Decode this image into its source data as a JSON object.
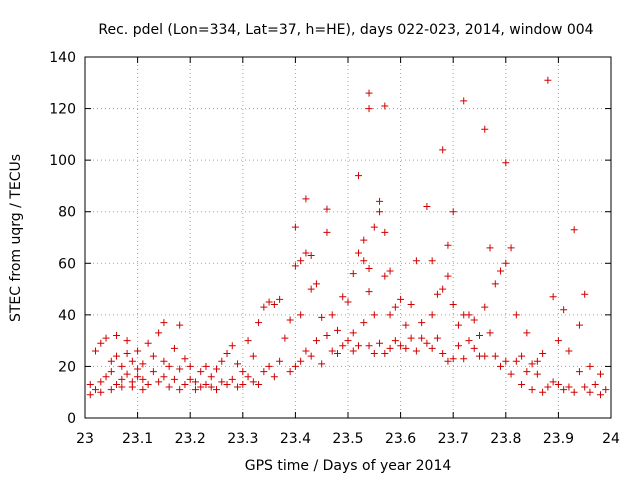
{
  "chart_data": {
    "type": "scatter",
    "title": "Rec. pdel (Lon=334, Lat=37, h=HE), days 022-023, 2014, window 004",
    "xlabel": "GPS time / Days of year 2014",
    "ylabel": "STEC from uqrg / TECUs",
    "xlim": [
      23,
      24
    ],
    "ylim": [
      0,
      140
    ],
    "x_ticks": [
      "23",
      "23.1",
      "23.2",
      "23.3",
      "23.4",
      "23.5",
      "23.6",
      "23.7",
      "23.8",
      "23.9",
      "24"
    ],
    "y_ticks": [
      "0",
      "20",
      "40",
      "60",
      "80",
      "100",
      "120",
      "140"
    ],
    "grid": true,
    "marker": "+",
    "color": "#d00000",
    "series": [
      {
        "points": [
          [
            23.01,
            9
          ],
          [
            23.01,
            13
          ],
          [
            23.02,
            11
          ],
          [
            23.02,
            26
          ],
          [
            23.03,
            10
          ],
          [
            23.03,
            14
          ],
          [
            23.03,
            29
          ],
          [
            23.04,
            16
          ],
          [
            23.04,
            31
          ],
          [
            23.05,
            11
          ],
          [
            23.05,
            18
          ],
          [
            23.05,
            22
          ],
          [
            23.06,
            13
          ],
          [
            23.06,
            24
          ],
          [
            23.06,
            32
          ],
          [
            23.07,
            12
          ],
          [
            23.07,
            15
          ],
          [
            23.07,
            20
          ],
          [
            23.08,
            17
          ],
          [
            23.08,
            25
          ],
          [
            23.08,
            30
          ],
          [
            23.09,
            12
          ],
          [
            23.09,
            14
          ],
          [
            23.09,
            22
          ],
          [
            23.1,
            16
          ],
          [
            23.1,
            19
          ],
          [
            23.1,
            26
          ],
          [
            23.11,
            11
          ],
          [
            23.11,
            15
          ],
          [
            23.11,
            21
          ],
          [
            23.12,
            13
          ],
          [
            23.12,
            29
          ],
          [
            23.13,
            18
          ],
          [
            23.13,
            24
          ],
          [
            23.14,
            14
          ],
          [
            23.14,
            33
          ],
          [
            23.15,
            16
          ],
          [
            23.15,
            22
          ],
          [
            23.15,
            37
          ],
          [
            23.16,
            12
          ],
          [
            23.16,
            20
          ],
          [
            23.17,
            15
          ],
          [
            23.17,
            27
          ],
          [
            23.18,
            11
          ],
          [
            23.18,
            19
          ],
          [
            23.18,
            36
          ],
          [
            23.19,
            13
          ],
          [
            23.19,
            23
          ],
          [
            23.2,
            15
          ],
          [
            23.2,
            20
          ],
          [
            23.21,
            11
          ],
          [
            23.21,
            14
          ],
          [
            23.22,
            12
          ],
          [
            23.22,
            18
          ],
          [
            23.23,
            13
          ],
          [
            23.23,
            20
          ],
          [
            23.24,
            12
          ],
          [
            23.24,
            16
          ],
          [
            23.25,
            11
          ],
          [
            23.25,
            19
          ],
          [
            23.26,
            14
          ],
          [
            23.26,
            22
          ],
          [
            23.27,
            13
          ],
          [
            23.27,
            25
          ],
          [
            23.28,
            15
          ],
          [
            23.28,
            28
          ],
          [
            23.29,
            12
          ],
          [
            23.29,
            21
          ],
          [
            23.3,
            13
          ],
          [
            23.3,
            18
          ],
          [
            23.31,
            16
          ],
          [
            23.31,
            30
          ],
          [
            23.32,
            14
          ],
          [
            23.32,
            24
          ],
          [
            23.33,
            13
          ],
          [
            23.33,
            37
          ],
          [
            23.34,
            18
          ],
          [
            23.34,
            43
          ],
          [
            23.35,
            20
          ],
          [
            23.35,
            45
          ],
          [
            23.36,
            16
          ],
          [
            23.36,
            44
          ],
          [
            23.37,
            22
          ],
          [
            23.37,
            46
          ],
          [
            23.38,
            31
          ],
          [
            23.39,
            18
          ],
          [
            23.39,
            38
          ],
          [
            23.4,
            20
          ],
          [
            23.4,
            59
          ],
          [
            23.4,
            74
          ],
          [
            23.41,
            22
          ],
          [
            23.41,
            40
          ],
          [
            23.41,
            61
          ],
          [
            23.42,
            26
          ],
          [
            23.42,
            64
          ],
          [
            23.42,
            85
          ],
          [
            23.43,
            24
          ],
          [
            23.43,
            50
          ],
          [
            23.43,
            63
          ],
          [
            23.44,
            30
          ],
          [
            23.44,
            52
          ],
          [
            23.45,
            21
          ],
          [
            23.45,
            39
          ],
          [
            23.46,
            32
          ],
          [
            23.46,
            72
          ],
          [
            23.46,
            81
          ],
          [
            23.47,
            26
          ],
          [
            23.47,
            40
          ],
          [
            23.48,
            25
          ],
          [
            23.48,
            34
          ],
          [
            23.49,
            47
          ],
          [
            23.49,
            28
          ],
          [
            23.5,
            30
          ],
          [
            23.5,
            45
          ],
          [
            23.51,
            26
          ],
          [
            23.51,
            33
          ],
          [
            23.51,
            56
          ],
          [
            23.52,
            94
          ],
          [
            23.52,
            28
          ],
          [
            23.52,
            64
          ],
          [
            23.53,
            37
          ],
          [
            23.53,
            61
          ],
          [
            23.53,
            69
          ],
          [
            23.54,
            28
          ],
          [
            23.54,
            49
          ],
          [
            23.54,
            58
          ],
          [
            23.54,
            120
          ],
          [
            23.54,
            126
          ],
          [
            23.55,
            25
          ],
          [
            23.55,
            40
          ],
          [
            23.55,
            74
          ],
          [
            23.56,
            29
          ],
          [
            23.56,
            80
          ],
          [
            23.56,
            84
          ],
          [
            23.57,
            25
          ],
          [
            23.57,
            55
          ],
          [
            23.57,
            72
          ],
          [
            23.57,
            121
          ],
          [
            23.58,
            27
          ],
          [
            23.58,
            40
          ],
          [
            23.58,
            57
          ],
          [
            23.59,
            30
          ],
          [
            23.59,
            43
          ],
          [
            23.6,
            28
          ],
          [
            23.6,
            46
          ],
          [
            23.61,
            27
          ],
          [
            23.61,
            36
          ],
          [
            23.62,
            31
          ],
          [
            23.62,
            44
          ],
          [
            23.63,
            26
          ],
          [
            23.63,
            61
          ],
          [
            23.64,
            31
          ],
          [
            23.64,
            37
          ],
          [
            23.65,
            29
          ],
          [
            23.65,
            82
          ],
          [
            23.66,
            27
          ],
          [
            23.66,
            61
          ],
          [
            23.66,
            40
          ],
          [
            23.67,
            31
          ],
          [
            23.67,
            48
          ],
          [
            23.68,
            25
          ],
          [
            23.68,
            104
          ],
          [
            23.68,
            50
          ],
          [
            23.69,
            22
          ],
          [
            23.69,
            55
          ],
          [
            23.69,
            67
          ],
          [
            23.7,
            23
          ],
          [
            23.7,
            44
          ],
          [
            23.7,
            80
          ],
          [
            23.71,
            28
          ],
          [
            23.71,
            36
          ],
          [
            23.72,
            23
          ],
          [
            23.72,
            123
          ],
          [
            23.72,
            40
          ],
          [
            23.73,
            30
          ],
          [
            23.73,
            40
          ],
          [
            23.74,
            27
          ],
          [
            23.74,
            38
          ],
          [
            23.75,
            24
          ],
          [
            23.75,
            32
          ],
          [
            23.76,
            24
          ],
          [
            23.76,
            112
          ],
          [
            23.76,
            43
          ],
          [
            23.77,
            33
          ],
          [
            23.77,
            66
          ],
          [
            23.78,
            24
          ],
          [
            23.78,
            52
          ],
          [
            23.79,
            20
          ],
          [
            23.79,
            57
          ],
          [
            23.8,
            22
          ],
          [
            23.8,
            99
          ],
          [
            23.8,
            60
          ],
          [
            23.81,
            17
          ],
          [
            23.81,
            66
          ],
          [
            23.82,
            22
          ],
          [
            23.82,
            40
          ],
          [
            23.83,
            13
          ],
          [
            23.83,
            24
          ],
          [
            23.84,
            18
          ],
          [
            23.84,
            33
          ],
          [
            23.85,
            11
          ],
          [
            23.85,
            21
          ],
          [
            23.86,
            17
          ],
          [
            23.86,
            22
          ],
          [
            23.87,
            10
          ],
          [
            23.87,
            25
          ],
          [
            23.88,
            12
          ],
          [
            23.88,
            131
          ],
          [
            23.89,
            14
          ],
          [
            23.89,
            47
          ],
          [
            23.9,
            13
          ],
          [
            23.9,
            30
          ],
          [
            23.91,
            11
          ],
          [
            23.91,
            42
          ],
          [
            23.92,
            12
          ],
          [
            23.92,
            26
          ],
          [
            23.93,
            73
          ],
          [
            23.93,
            10
          ],
          [
            23.94,
            36
          ],
          [
            23.94,
            18
          ],
          [
            23.95,
            12
          ],
          [
            23.95,
            48
          ],
          [
            23.96,
            10
          ],
          [
            23.96,
            20
          ],
          [
            23.97,
            13
          ],
          [
            23.98,
            9
          ],
          [
            23.98,
            17
          ],
          [
            23.99,
            11
          ]
        ]
      }
    ]
  }
}
